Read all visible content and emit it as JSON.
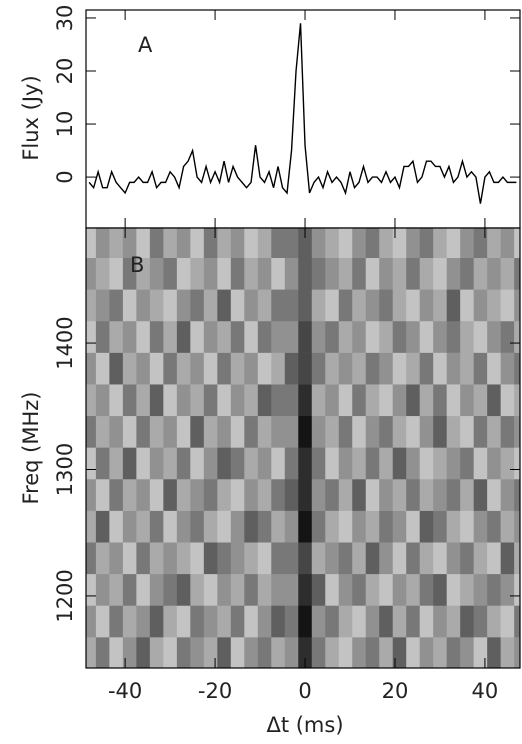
{
  "chart_data": [
    {
      "type": "line",
      "ylabel": "Flux (Jy)",
      "annotation": "A",
      "x": [
        -48,
        -47,
        -46,
        -45,
        -44,
        -43,
        -42,
        -41,
        -40,
        -39,
        -38,
        -37,
        -36,
        -35,
        -34,
        -33,
        -32,
        -31,
        -30,
        -29,
        -28,
        -27,
        -26,
        -25,
        -24,
        -23,
        -22,
        -21,
        -20,
        -19,
        -18,
        -17,
        -16,
        -15,
        -14,
        -13,
        -12,
        -11,
        -10,
        -9,
        -8,
        -7,
        -6,
        -5,
        -4,
        -3,
        -2,
        -1,
        0,
        1,
        2,
        3,
        4,
        5,
        6,
        7,
        8,
        9,
        10,
        11,
        12,
        13,
        14,
        15,
        16,
        17,
        18,
        19,
        20,
        21,
        22,
        23,
        24,
        25,
        26,
        27,
        28,
        29,
        30,
        31,
        32,
        33,
        34,
        35,
        36,
        37,
        38,
        39,
        40,
        41,
        42,
        43,
        44,
        45,
        46,
        47
      ],
      "values": [
        -1,
        -2,
        1,
        -2,
        -2,
        1,
        -1,
        -2,
        -3,
        -1,
        -1,
        0,
        -1,
        -1,
        1,
        -2,
        -1,
        -1,
        1,
        0,
        -2,
        2,
        3,
        5,
        0,
        -1,
        2,
        -1,
        1,
        -1,
        3,
        -1,
        2,
        0,
        -1,
        -2,
        -1,
        6,
        0,
        -1,
        1,
        -2,
        2,
        -2,
        -3,
        5,
        20,
        29,
        6,
        -3,
        -1,
        0,
        -2,
        1,
        -1,
        0,
        -1,
        -3,
        1,
        -2,
        -1,
        2,
        -1,
        0,
        0,
        -1,
        1,
        -1,
        0,
        -2,
        2,
        2,
        3,
        -1,
        0,
        3,
        3,
        2,
        2,
        0,
        2,
        -1,
        0,
        3,
        0,
        1,
        0,
        -5,
        0,
        1,
        -1,
        -1,
        0,
        -1,
        -1,
        -1
      ],
      "color": "#000000",
      "xlim": [
        -48.7,
        47.8
      ],
      "ylim": [
        -9.6,
        31.5
      ],
      "yticks": [
        0,
        10,
        20,
        30
      ]
    },
    {
      "type": "heatmap",
      "xlabel": "Δt (ms)",
      "ylabel": "Freq (MHz)",
      "annotation": "B",
      "x": [
        -48,
        -45,
        -42,
        -39,
        -36,
        -33,
        -30,
        -27,
        -24,
        -21,
        -18,
        -15,
        -12,
        -9,
        -6,
        -3,
        0,
        3,
        6,
        9,
        12,
        15,
        18,
        21,
        24,
        27,
        30,
        33,
        36,
        39,
        42,
        45,
        48
      ],
      "y": [
        1155,
        1180,
        1205,
        1230,
        1255,
        1280,
        1305,
        1330,
        1355,
        1380,
        1405,
        1430,
        1455,
        1480
      ],
      "z": [
        [
          3,
          5,
          2,
          4,
          6,
          3,
          2,
          5,
          4,
          3,
          6,
          2,
          4,
          5,
          3,
          4,
          8,
          5,
          3,
          2,
          4,
          5,
          3,
          6,
          2,
          4,
          3,
          5,
          4,
          2,
          6,
          3,
          4
        ],
        [
          4,
          2,
          5,
          3,
          4,
          6,
          3,
          2,
          5,
          4,
          3,
          5,
          2,
          4,
          6,
          5,
          9,
          4,
          5,
          3,
          2,
          4,
          6,
          3,
          5,
          2,
          4,
          3,
          6,
          5,
          3,
          2,
          5
        ],
        [
          2,
          4,
          3,
          5,
          2,
          4,
          5,
          6,
          3,
          2,
          4,
          3,
          5,
          3,
          4,
          4,
          8,
          6,
          2,
          4,
          5,
          3,
          2,
          4,
          3,
          5,
          6,
          2,
          3,
          4,
          5,
          4,
          2
        ],
        [
          5,
          3,
          4,
          2,
          5,
          3,
          4,
          3,
          2,
          6,
          5,
          4,
          3,
          2,
          5,
          5,
          7,
          3,
          4,
          5,
          3,
          6,
          4,
          2,
          5,
          3,
          2,
          4,
          5,
          3,
          2,
          6,
          3
        ],
        [
          3,
          6,
          2,
          4,
          3,
          5,
          2,
          4,
          5,
          3,
          2,
          4,
          6,
          5,
          3,
          4,
          9,
          5,
          3,
          2,
          4,
          3,
          5,
          4,
          2,
          6,
          5,
          3,
          2,
          4,
          5,
          3,
          4
        ],
        [
          4,
          2,
          5,
          3,
          4,
          2,
          6,
          3,
          4,
          5,
          3,
          2,
          4,
          3,
          5,
          6,
          8,
          4,
          5,
          3,
          6,
          2,
          4,
          3,
          5,
          3,
          4,
          5,
          3,
          6,
          2,
          4,
          5
        ],
        [
          2,
          5,
          3,
          6,
          2,
          4,
          3,
          5,
          2,
          4,
          6,
          5,
          3,
          4,
          2,
          5,
          8,
          5,
          2,
          4,
          3,
          5,
          3,
          6,
          4,
          2,
          3,
          4,
          5,
          2,
          4,
          3,
          2
        ],
        [
          5,
          3,
          4,
          2,
          5,
          3,
          4,
          2,
          6,
          3,
          4,
          2,
          5,
          3,
          4,
          4,
          9,
          4,
          3,
          5,
          2,
          4,
          5,
          3,
          2,
          4,
          6,
          3,
          2,
          5,
          3,
          5,
          4
        ],
        [
          3,
          4,
          2,
          5,
          3,
          6,
          2,
          4,
          3,
          5,
          2,
          4,
          3,
          6,
          5,
          5,
          8,
          3,
          4,
          2,
          5,
          3,
          2,
          4,
          6,
          3,
          5,
          2,
          4,
          3,
          6,
          2,
          3
        ],
        [
          4,
          2,
          6,
          3,
          4,
          2,
          5,
          3,
          4,
          2,
          5,
          3,
          4,
          2,
          3,
          6,
          7,
          5,
          3,
          4,
          3,
          5,
          4,
          2,
          3,
          5,
          2,
          4,
          3,
          5,
          2,
          4,
          5
        ],
        [
          2,
          5,
          3,
          4,
          2,
          5,
          3,
          6,
          2,
          4,
          3,
          5,
          2,
          5,
          4,
          4,
          7,
          4,
          5,
          3,
          4,
          2,
          3,
          5,
          4,
          2,
          4,
          5,
          3,
          2,
          4,
          5,
          3
        ],
        [
          3,
          4,
          5,
          2,
          4,
          3,
          2,
          4,
          5,
          3,
          6,
          2,
          4,
          3,
          5,
          5,
          6,
          3,
          2,
          5,
          3,
          4,
          5,
          3,
          2,
          4,
          3,
          6,
          2,
          4,
          3,
          2,
          4
        ],
        [
          4,
          3,
          2,
          5,
          3,
          4,
          5,
          2,
          3,
          4,
          2,
          5,
          3,
          4,
          2,
          4,
          6,
          5,
          4,
          3,
          5,
          2,
          4,
          3,
          5,
          3,
          2,
          4,
          5,
          3,
          4,
          3,
          5
        ],
        [
          2,
          4,
          3,
          4,
          2,
          5,
          3,
          4,
          2,
          5,
          3,
          4,
          2,
          3,
          5,
          5,
          6,
          4,
          3,
          2,
          4,
          5,
          3,
          2,
          4,
          5,
          3,
          2,
          4,
          5,
          3,
          4,
          2
        ]
      ],
      "zlim": [
        0,
        9
      ],
      "xlim": [
        -48.7,
        47.8
      ],
      "ylim": [
        1143,
        1491
      ],
      "xticks": [
        -40,
        -20,
        0,
        20,
        40
      ],
      "yticks": [
        1200,
        1300,
        1400
      ]
    }
  ]
}
